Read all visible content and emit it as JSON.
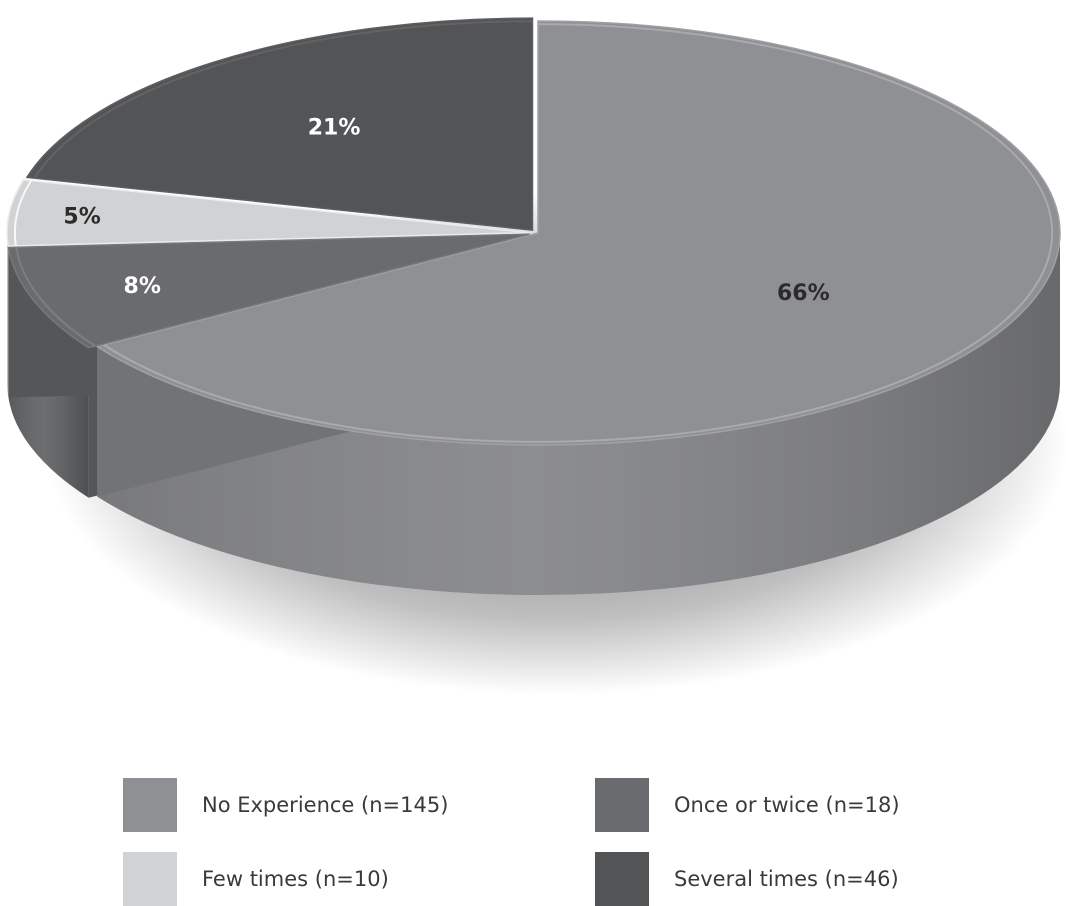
{
  "chart_data": {
    "type": "pie",
    "title": "",
    "style": "3d",
    "slices": [
      {
        "name": "No Experience (n=145)",
        "value": 66,
        "label": "66%",
        "color": "#8f9093",
        "label_color": "#2b2b2b"
      },
      {
        "name": "Once or twice (n=18)",
        "value": 8,
        "label": "8%",
        "color": "#6a6b6e",
        "label_color": "#ffffff"
      },
      {
        "name": "Few times (n=10)",
        "value": 5,
        "label": "5%",
        "color": "#d1d2d4",
        "label_color": "#2b2b2b"
      },
      {
        "name": "Several times (n=46)",
        "value": 21,
        "label": "21%",
        "color": "#535456",
        "label_color": "#ffffff"
      }
    ],
    "legend": {
      "placement": "bottom",
      "columns": 2,
      "order": [
        0,
        1,
        2,
        3
      ]
    }
  }
}
